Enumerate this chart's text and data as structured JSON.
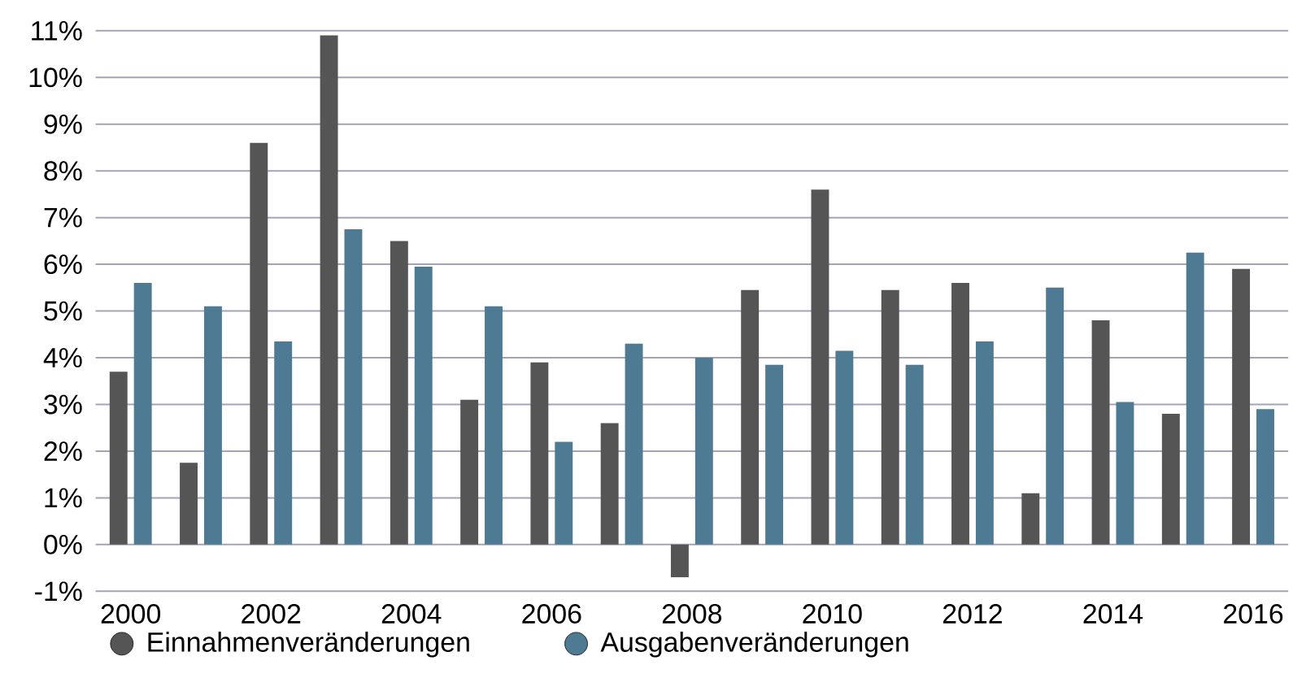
{
  "chart_data": {
    "type": "bar",
    "categories": [
      "2000",
      null,
      "2002",
      null,
      "2004",
      null,
      "2006",
      null,
      "2008",
      null,
      "2010",
      null,
      "2012",
      null,
      "2014",
      null,
      "2016"
    ],
    "series": [
      {
        "name": "Einnahmenveränderungen",
        "color": "#555555",
        "values": [
          3.7,
          1.75,
          8.6,
          10.9,
          6.5,
          3.1,
          3.9,
          2.6,
          -0.7,
          5.45,
          7.6,
          5.45,
          5.6,
          1.1,
          4.8,
          2.8,
          5.9
        ]
      },
      {
        "name": "Ausgabenveränderungen",
        "color": "#4e7a94",
        "values": [
          5.6,
          5.1,
          4.35,
          6.75,
          5.95,
          5.1,
          2.2,
          4.3,
          4.0,
          3.85,
          4.15,
          3.85,
          4.35,
          5.5,
          3.05,
          6.25,
          2.9
        ]
      }
    ],
    "ylim": [
      -1,
      11
    ],
    "yticks": [
      {
        "value": -1,
        "label": "-1%"
      },
      {
        "value": 0,
        "label": "0%"
      },
      {
        "value": 1,
        "label": "1%"
      },
      {
        "value": 2,
        "label": "2%"
      },
      {
        "value": 3,
        "label": "3%"
      },
      {
        "value": 4,
        "label": "4%"
      },
      {
        "value": 5,
        "label": "5%"
      },
      {
        "value": 6,
        "label": "6%"
      },
      {
        "value": 7,
        "label": "7%"
      },
      {
        "value": 8,
        "label": "8%"
      },
      {
        "value": 9,
        "label": "9%"
      },
      {
        "value": 10,
        "label": "10%"
      },
      {
        "value": 11,
        "label": "11%"
      }
    ],
    "grid": "y",
    "legend": "bottom left",
    "marker": "circle"
  }
}
